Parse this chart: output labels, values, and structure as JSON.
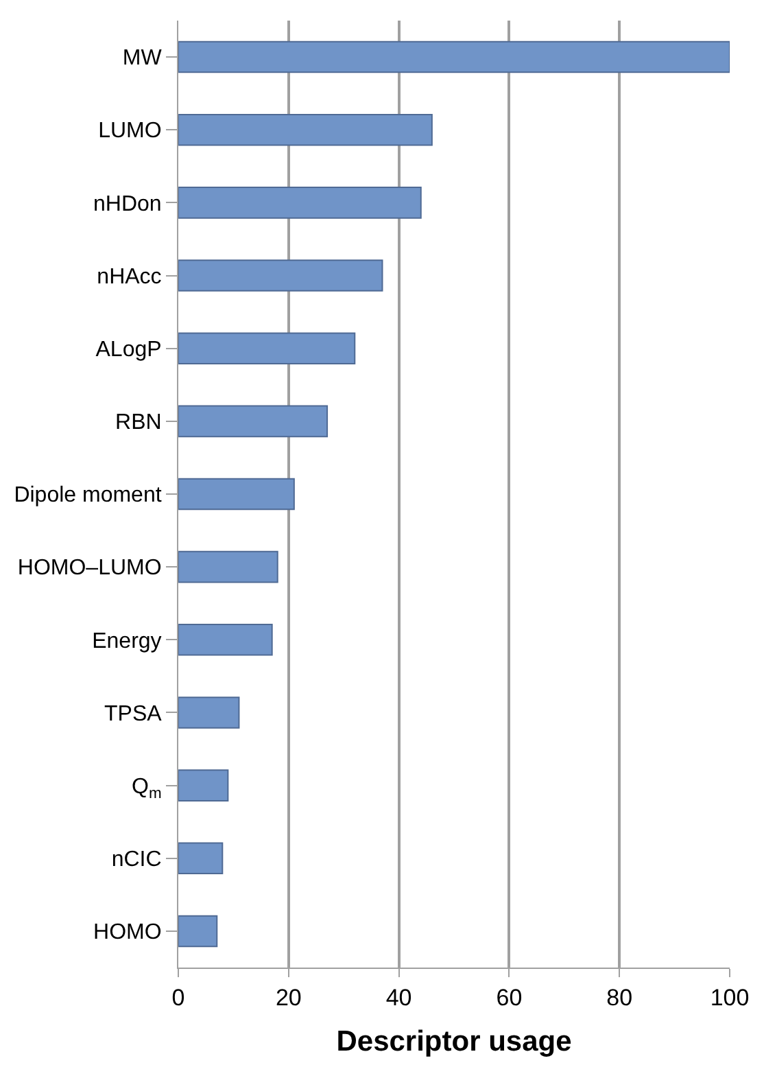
{
  "chart_data": {
    "type": "bar",
    "orientation": "horizontal",
    "xlabel": "Descriptor usage",
    "categories": [
      "MW",
      "LUMO",
      "nHDon",
      "nHAcc",
      "ALogP",
      "RBN",
      "Dipole moment",
      "HOMO–LUMO",
      "Energy",
      "TPSA",
      "Q$_{m}$",
      "nCIC",
      "HOMO"
    ],
    "values": [
      100,
      46,
      44,
      37,
      32,
      27,
      21,
      18,
      17,
      11,
      9,
      8,
      7
    ],
    "color": "#7094c8",
    "xlim": [
      0,
      100
    ],
    "xticks": [
      0,
      20,
      40,
      60,
      80,
      100
    ],
    "grid": "x"
  }
}
